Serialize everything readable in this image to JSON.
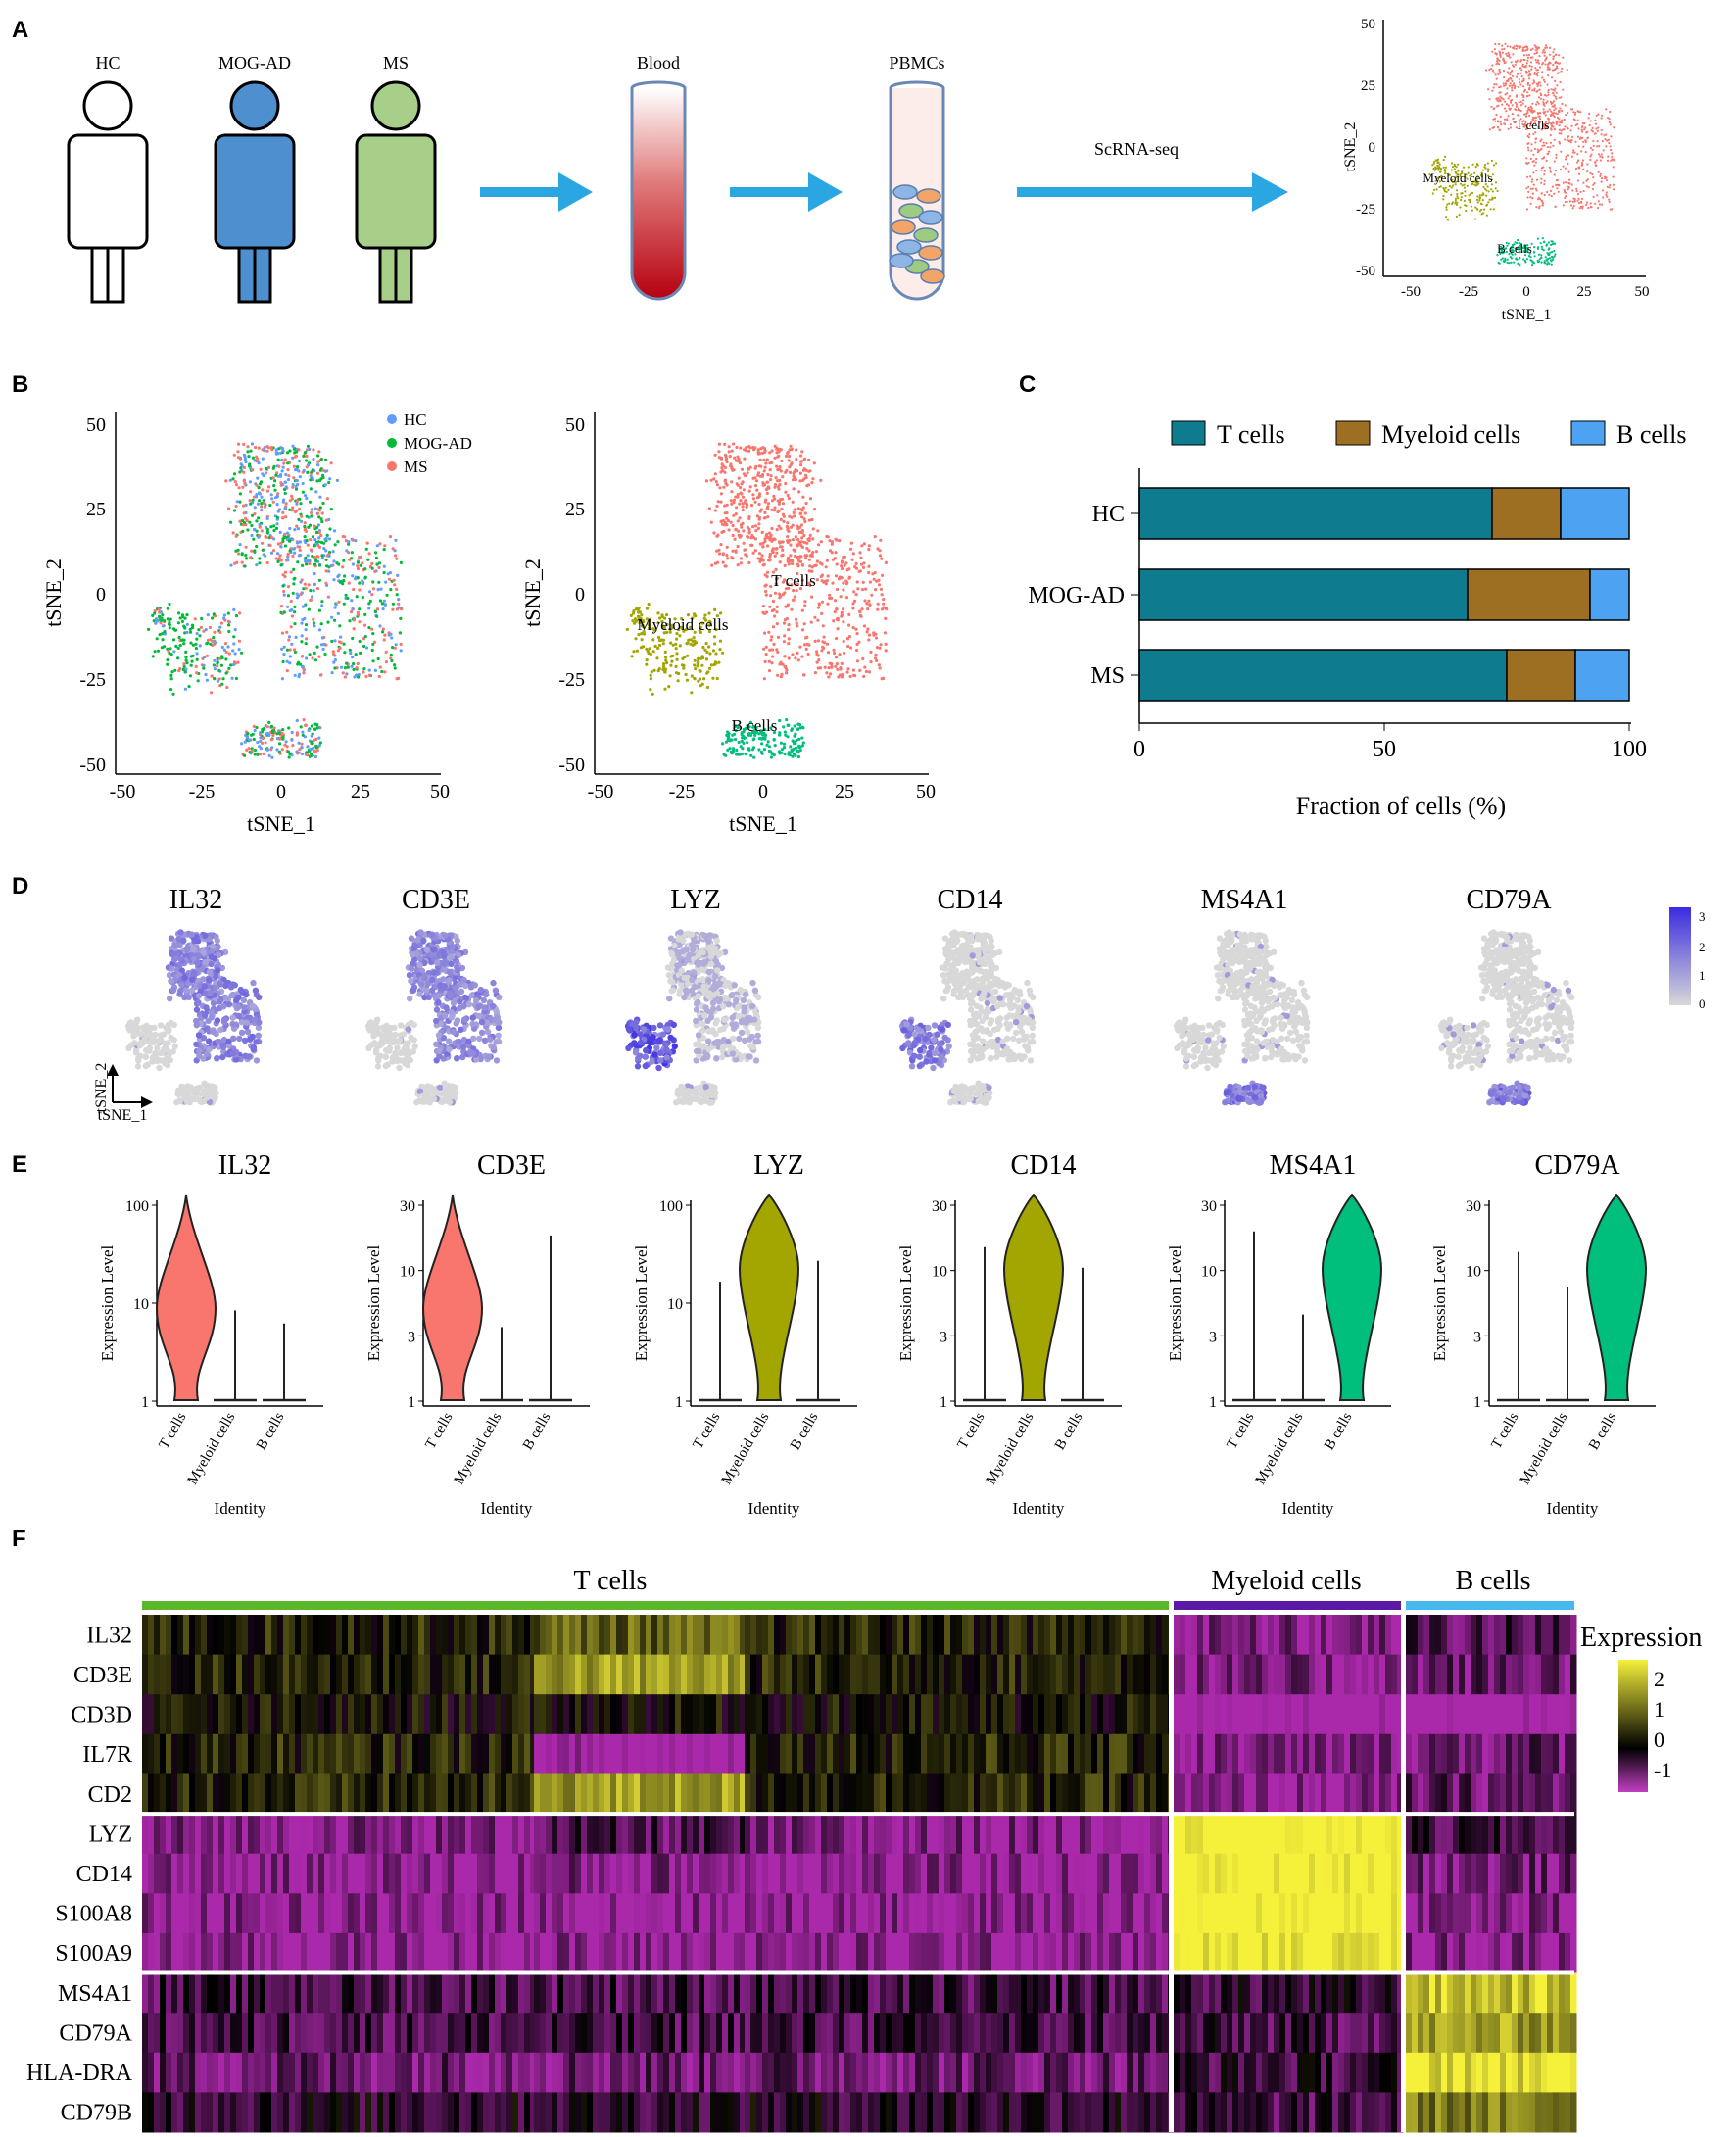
{
  "panels": {
    "a": "A",
    "b": "B",
    "c": "C",
    "d": "D",
    "e": "E",
    "f": "F"
  },
  "panel_a": {
    "groups": [
      "HC",
      "MOG-AD",
      "MS"
    ],
    "blood": "Blood",
    "pbmcs": "PBMCs",
    "method": "ScRNA-seq",
    "tsne": {
      "xlabel": "tSNE_1",
      "ylabel": "tSNE_2",
      "xticks": [
        "-50",
        "-25",
        "0",
        "25",
        "50"
      ],
      "yticks": [
        "50",
        "25",
        "0",
        "-25",
        "-50"
      ],
      "clusters": [
        "T cells",
        "Myeloid cells",
        "B cells"
      ]
    }
  },
  "colors": {
    "t_cells": "#F8766D",
    "myeloid": "#A3A500",
    "b_cells": "#00BF7D",
    "hc": "#619CFF",
    "mog": "#00BA38",
    "ms": "#F8766D",
    "bar_t": "#0E7B8E",
    "bar_my": "#9C6F23",
    "bar_b": "#4DA3F2",
    "arrow": "#2AA7E2",
    "person_hc": "#FFFFFF",
    "person_mog": "#4E8FCF",
    "person_ms": "#A7CF8A"
  },
  "panel_b": {
    "left": {
      "legend": [
        "HC",
        "MOG-AD",
        "MS"
      ],
      "xlabel": "tSNE_1",
      "ylabel": "tSNE_2",
      "xticks": [
        "-50",
        "-25",
        "0",
        "25",
        "50"
      ],
      "yticks": [
        "50",
        "25",
        "0",
        "-25",
        "-50"
      ]
    },
    "right": {
      "clusters": [
        "T cells",
        "Myeloid cells",
        "B cells"
      ],
      "xlabel": "tSNE_1",
      "ylabel": "tSNE_2",
      "xticks": [
        "-50",
        "-25",
        "0",
        "25",
        "50"
      ],
      "yticks": [
        "50",
        "25",
        "0",
        "-25",
        "-50"
      ]
    }
  },
  "panel_d": {
    "genes": [
      "IL32",
      "CD3E",
      "LYZ",
      "CD14",
      "MS4A1",
      "CD79A"
    ],
    "scale_ticks": [
      "3",
      "2",
      "1",
      "0"
    ],
    "axis_x": "tSNE_1",
    "axis_y": "tSNE_2"
  },
  "panel_e": {
    "genes": [
      "IL32",
      "CD3E",
      "LYZ",
      "CD14",
      "MS4A1",
      "CD79A"
    ],
    "ylabel": "Expression Level",
    "xlabel": "Identity",
    "identities": [
      "T cells",
      "Myeloid cells",
      "B cells"
    ],
    "yticks": [
      [
        "100",
        "10",
        "1"
      ],
      [
        "30",
        "10",
        "3",
        "1"
      ],
      [
        "100",
        "10",
        "1"
      ],
      [
        "30",
        "10",
        "3",
        "1"
      ],
      [
        "30",
        "10",
        "3",
        "1"
      ],
      [
        "30",
        "10",
        "3",
        "1"
      ]
    ]
  },
  "panel_f": {
    "groups": [
      "T cells",
      "Myeloid cells",
      "B cells"
    ],
    "group_colors": [
      "#5BB82A",
      "#5A1AA6",
      "#45B8EE"
    ],
    "genes": [
      "IL32",
      "CD3E",
      "CD3D",
      "IL7R",
      "CD2",
      "LYZ",
      "CD14",
      "S100A8",
      "S100A9",
      "MS4A1",
      "CD79A",
      "HLA-DRA",
      "CD79B"
    ],
    "legend_title": "Expression",
    "legend_ticks": [
      "2",
      "1",
      "0",
      "-1"
    ]
  },
  "chart_data": [
    {
      "type": "bar",
      "orientation": "horizontal",
      "stacked": true,
      "categories": [
        "HC",
        "MOG-AD",
        "MS"
      ],
      "series": [
        {
          "name": "T cells",
          "values": [
            72,
            67,
            75
          ]
        },
        {
          "name": "Myeloid cells",
          "values": [
            14,
            25,
            14
          ]
        },
        {
          "name": "B cells",
          "values": [
            14,
            8,
            11
          ]
        }
      ],
      "legend": [
        "T cells",
        "Myeloid cells",
        "B cells"
      ],
      "xlabel": "Fraction of cells (%)",
      "xlim": [
        0,
        100
      ],
      "xticks": [
        "0",
        "50",
        "100"
      ]
    },
    {
      "type": "heatmap",
      "rows": [
        "IL32",
        "CD3E",
        "CD3D",
        "IL7R",
        "CD2",
        "LYZ",
        "CD14",
        "S100A8",
        "S100A9",
        "MS4A1",
        "CD79A",
        "HLA-DRA",
        "CD79B"
      ],
      "column_groups": [
        "T cells",
        "Myeloid cells",
        "B cells"
      ],
      "values": [
        [
          0.3,
          0.8,
          -0.8,
          -0.5
        ],
        [
          0.3,
          1.3,
          -0.8,
          -0.6
        ],
        [
          0.1,
          0.1,
          -1.3,
          -1.3
        ],
        [
          0.3,
          -1.1,
          -0.8,
          -0.6
        ],
        [
          0.3,
          1.3,
          -0.9,
          -0.6
        ],
        [
          -0.8,
          -0.5,
          2.2,
          -0.4
        ],
        [
          -0.9,
          -0.8,
          2.2,
          -0.7
        ],
        [
          -0.9,
          -0.9,
          2.2,
          -0.8
        ],
        [
          -0.9,
          -0.9,
          2.1,
          -0.8
        ],
        [
          -0.4,
          -0.4,
          -0.3,
          1.6
        ],
        [
          -0.4,
          -0.4,
          -0.4,
          1.3
        ],
        [
          -0.6,
          -0.6,
          -0.3,
          1.9
        ],
        [
          -0.2,
          -0.2,
          -0.4,
          1.0
        ]
      ],
      "legend_title": "Expression",
      "scale": [
        -1,
        2
      ]
    }
  ]
}
